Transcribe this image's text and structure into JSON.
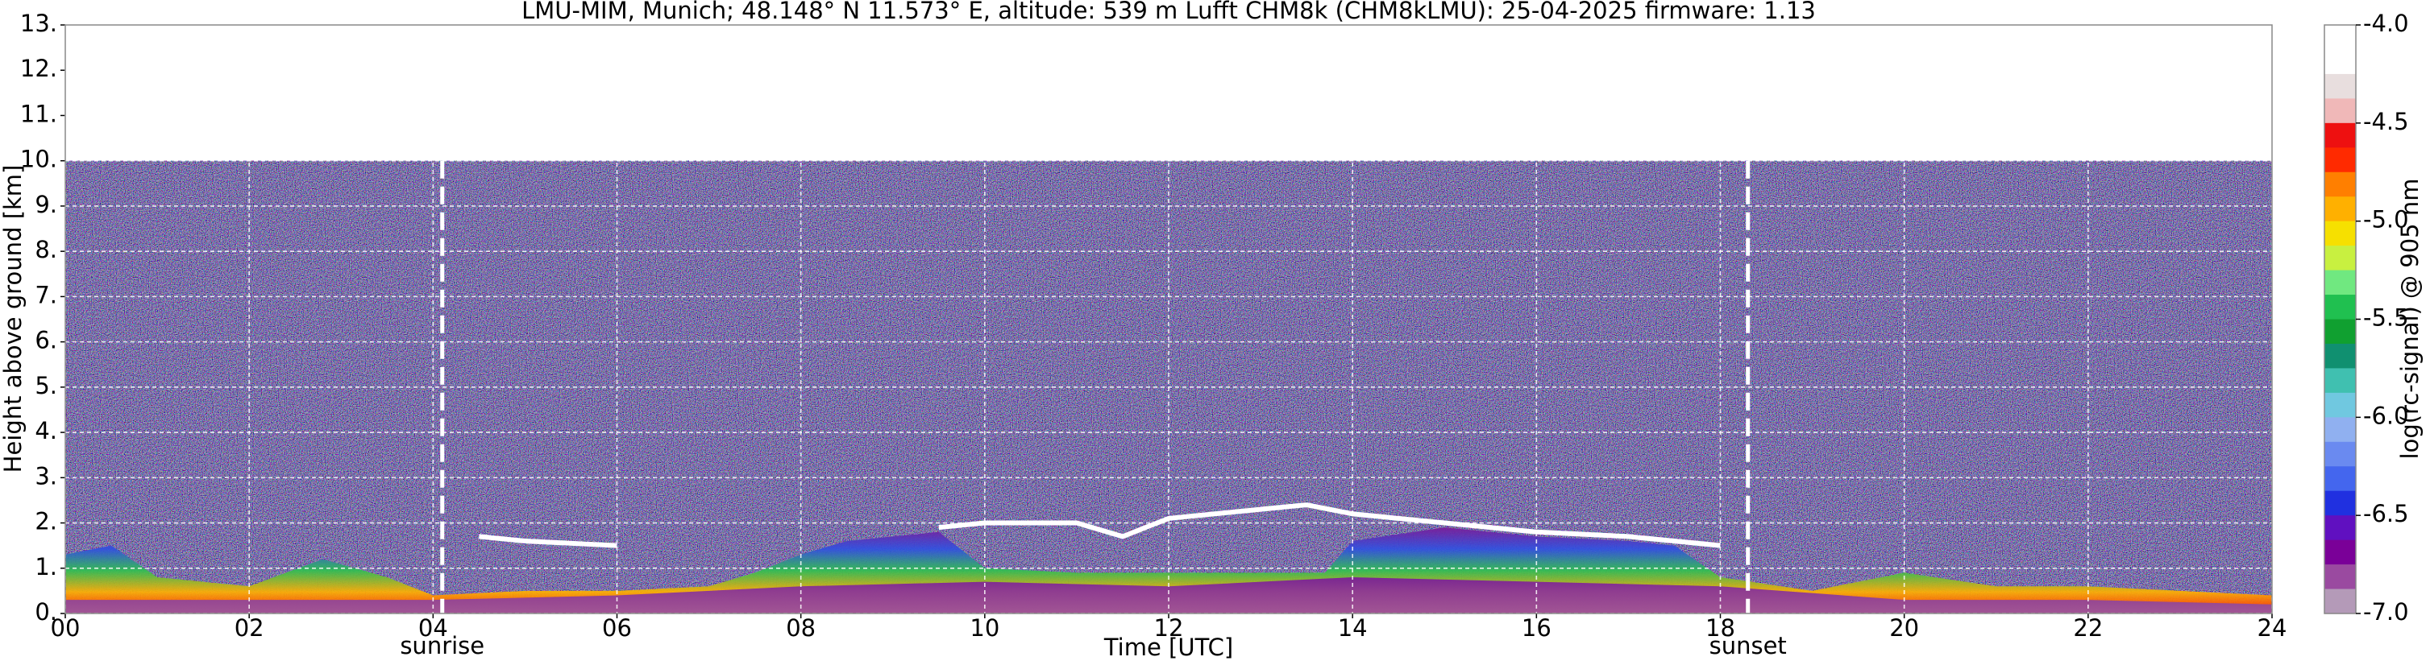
{
  "chart_data": {
    "type": "ceilometer",
    "title": "LMU-MIM, Munich; 48.148° N 11.573° E, altitude: 539 m    Lufft CHM8k (CHM8kLMU): 25-04-2025    firmware: 1.13",
    "x_label": "Time [UTC]",
    "y_label": "Height above ground [km]",
    "xlim": [
      0,
      24
    ],
    "ylim": [
      0,
      13
    ],
    "xticks": [
      {
        "value": 0,
        "label": "00"
      },
      {
        "value": 2,
        "label": "02"
      },
      {
        "value": 4,
        "label": "04"
      },
      {
        "value": 6,
        "label": "06"
      },
      {
        "value": 8,
        "label": "08"
      },
      {
        "value": 10,
        "label": "10"
      },
      {
        "value": 12,
        "label": "12"
      },
      {
        "value": 14,
        "label": "14"
      },
      {
        "value": 16,
        "label": "16"
      },
      {
        "value": 18,
        "label": "18"
      },
      {
        "value": 20,
        "label": "20"
      },
      {
        "value": 22,
        "label": "22"
      },
      {
        "value": 24,
        "label": "24"
      }
    ],
    "yticks": [
      {
        "value": 0,
        "label": "0."
      },
      {
        "value": 1,
        "label": "1."
      },
      {
        "value": 2,
        "label": "2."
      },
      {
        "value": 3,
        "label": "3."
      },
      {
        "value": 4,
        "label": "4."
      },
      {
        "value": 5,
        "label": "5."
      },
      {
        "value": 6,
        "label": "6."
      },
      {
        "value": 7,
        "label": "7."
      },
      {
        "value": 8,
        "label": "8."
      },
      {
        "value": 9,
        "label": "9."
      },
      {
        "value": 10,
        "label": "10."
      },
      {
        "value": 11,
        "label": "11."
      },
      {
        "value": 12,
        "label": "12."
      },
      {
        "value": 13,
        "label": "13."
      }
    ],
    "grid": true,
    "signal_top": 10,
    "noise_color": "#2e2856",
    "layers": [
      {
        "colors": [
          "#ff1a00",
          "#ffb000",
          "#30c050",
          "#3050e0",
          "#7a1a98"
        ],
        "x": [
          0,
          0.5,
          1,
          2,
          2.8,
          3.5,
          4,
          5,
          6,
          7,
          7.5,
          8,
          8.5,
          9,
          9.5,
          10,
          11,
          12,
          13,
          13.7,
          14,
          15,
          16,
          17,
          17.5,
          18,
          19,
          20,
          21,
          22,
          23,
          24
        ],
        "values": [
          1.3,
          1.5,
          0.8,
          0.6,
          1.2,
          0.8,
          0.4,
          0.5,
          0.5,
          0.6,
          0.9,
          1.3,
          1.6,
          1.7,
          1.8,
          1.0,
          0.9,
          0.9,
          0.9,
          0.9,
          1.6,
          1.9,
          1.7,
          1.6,
          1.5,
          0.8,
          0.5,
          0.9,
          0.6,
          0.6,
          0.5,
          0.4
        ]
      },
      {
        "colors": [
          "#9a5aa0",
          "#7a1a98"
        ],
        "x": [
          0,
          4,
          6,
          8,
          10,
          12,
          14,
          16,
          18,
          20,
          22,
          24
        ],
        "values": [
          0.3,
          0.3,
          0.4,
          0.6,
          0.7,
          0.6,
          0.8,
          0.7,
          0.6,
          0.3,
          0.3,
          0.2
        ]
      }
    ],
    "cloud_layer": {
      "color": "#ffffff",
      "x": [
        4.5,
        5,
        6,
        7,
        9.5,
        10,
        11,
        11.5,
        12,
        13,
        13.5,
        14,
        15,
        16,
        17,
        18
      ],
      "values": [
        1.7,
        1.6,
        1.5,
        null,
        1.9,
        2.0,
        2.0,
        1.7,
        2.1,
        2.3,
        2.4,
        2.2,
        2.0,
        1.8,
        1.7,
        1.5
      ]
    },
    "annotations": [
      {
        "text": "sunrise",
        "x": 4.1
      },
      {
        "text": "sunset",
        "x": 18.3
      }
    ],
    "colorbar": {
      "label": "log(rc-signal) @ 905 nm",
      "clim": [
        -7,
        -4
      ],
      "ticks": [
        {
          "value": -4,
          "label": "-4.0"
        },
        {
          "value": -4.5,
          "label": "-4.5"
        },
        {
          "value": -5,
          "label": "-5.0"
        },
        {
          "value": -5.5,
          "label": "-5.5"
        },
        {
          "value": -6,
          "label": "-6.0"
        },
        {
          "value": -6.5,
          "label": "-6.5"
        },
        {
          "value": -7,
          "label": "-7.0"
        }
      ],
      "colors": [
        "#ffffff",
        "#ffffff",
        "#e8dede",
        "#f0b8b8",
        "#ee1010",
        "#ff2a00",
        "#ff7f00",
        "#ffb000",
        "#f6e000",
        "#c8f040",
        "#70e880",
        "#20c050",
        "#10a030",
        "#109070",
        "#40c0b0",
        "#70c8e0",
        "#90b0f0",
        "#6a8af0",
        "#4466ee",
        "#2030e0",
        "#6010c0",
        "#7a0098",
        "#9a4aa0",
        "#b49ab8"
      ]
    }
  }
}
